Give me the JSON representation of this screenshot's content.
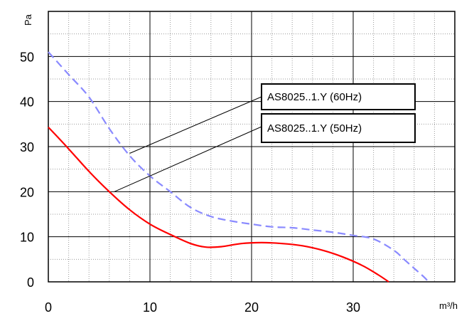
{
  "chart_data": {
    "type": "line",
    "title": "",
    "xlabel": "m³/h",
    "ylabel": "Pa",
    "xlim": [
      0,
      40
    ],
    "ylim": [
      0,
      60
    ],
    "grid": true,
    "x_ticks": [
      "0",
      "10",
      "20",
      "30"
    ],
    "y_ticks": [
      "0",
      "10",
      "20",
      "30",
      "40",
      "50"
    ],
    "series": [
      {
        "name": "AS8025..1.Y (60Hz)",
        "color": "#8a8aff",
        "style": "dashed",
        "points": [
          [
            0,
            51
          ],
          [
            2,
            46
          ],
          [
            4,
            41
          ],
          [
            6,
            34
          ],
          [
            8,
            28
          ],
          [
            10,
            23.5
          ],
          [
            12,
            20
          ],
          [
            14,
            16.5
          ],
          [
            16,
            14.5
          ],
          [
            18,
            13.5
          ],
          [
            20,
            12.8
          ],
          [
            22,
            12.2
          ],
          [
            24,
            12
          ],
          [
            26,
            11.5
          ],
          [
            28,
            11
          ],
          [
            30,
            10.3
          ],
          [
            32,
            9.5
          ],
          [
            34,
            7
          ],
          [
            35,
            5
          ],
          [
            36,
            3
          ],
          [
            37,
            1
          ],
          [
            37.4,
            0
          ]
        ]
      },
      {
        "name": "AS8025..1.Y (50Hz)",
        "color": "#ff0000",
        "style": "solid",
        "points": [
          [
            0,
            34.3
          ],
          [
            2,
            29.5
          ],
          [
            4,
            24.5
          ],
          [
            6,
            20
          ],
          [
            8,
            16
          ],
          [
            10,
            12.8
          ],
          [
            12,
            10.5
          ],
          [
            14,
            8.5
          ],
          [
            15.5,
            7.7
          ],
          [
            17,
            7.8
          ],
          [
            19,
            8.5
          ],
          [
            21,
            8.7
          ],
          [
            23,
            8.5
          ],
          [
            25,
            8
          ],
          [
            27,
            7
          ],
          [
            29,
            5.5
          ],
          [
            31,
            3.5
          ],
          [
            32.5,
            1.5
          ],
          [
            33.5,
            0
          ]
        ]
      }
    ],
    "annotations": [
      {
        "label": "AS8025..1.Y (60Hz)",
        "points_to": [
          8,
          28.5
        ]
      },
      {
        "label": "AS8025..1.Y (50Hz)",
        "points_to": [
          6.5,
          20
        ]
      }
    ]
  }
}
